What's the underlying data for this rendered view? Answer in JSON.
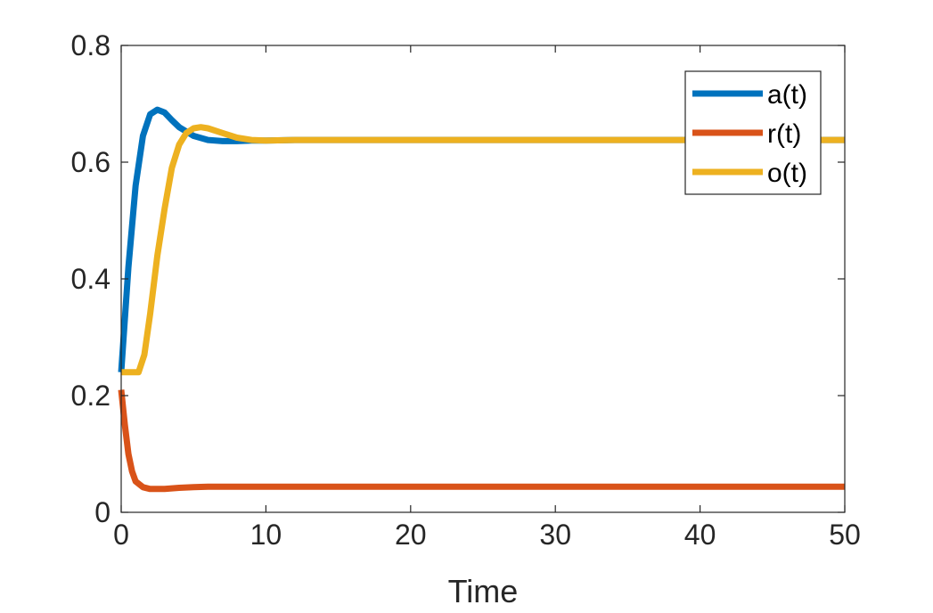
{
  "chart_data": {
    "type": "line",
    "title": "",
    "xlabel": "Time",
    "ylabel": "",
    "xlim": [
      0,
      50
    ],
    "ylim": [
      0,
      0.8
    ],
    "xticks": [
      0,
      10,
      20,
      30,
      40,
      50
    ],
    "yticks": [
      0,
      0.2,
      0.4,
      0.6,
      0.8
    ],
    "xtick_labels": [
      "0",
      "10",
      "20",
      "30",
      "40",
      "50"
    ],
    "ytick_labels": [
      "0",
      "0.2",
      "0.4",
      "0.6",
      "0.8"
    ],
    "grid": false,
    "legend_position": "top-right",
    "series": [
      {
        "name": "a(t)",
        "color": "#0072BD",
        "x": [
          0,
          0.5,
          1,
          1.5,
          2,
          2.5,
          3,
          3.5,
          4,
          5,
          6,
          7,
          8,
          9,
          10,
          12,
          15,
          20,
          30,
          40,
          50
        ],
        "y": [
          0.24,
          0.42,
          0.56,
          0.645,
          0.682,
          0.69,
          0.685,
          0.672,
          0.66,
          0.645,
          0.638,
          0.636,
          0.636,
          0.637,
          0.637,
          0.638,
          0.638,
          0.638,
          0.638,
          0.638,
          0.638
        ]
      },
      {
        "name": "r(t)",
        "color": "#D95319",
        "x": [
          0,
          0.25,
          0.5,
          0.75,
          1,
          1.5,
          2,
          3,
          4,
          5,
          6,
          8,
          10,
          15,
          20,
          30,
          40,
          50
        ],
        "y": [
          0.21,
          0.15,
          0.1,
          0.07,
          0.053,
          0.043,
          0.04,
          0.04,
          0.042,
          0.043,
          0.044,
          0.044,
          0.044,
          0.044,
          0.044,
          0.044,
          0.044,
          0.044
        ]
      },
      {
        "name": "o(t)",
        "color": "#EDB120",
        "x": [
          0,
          0.6,
          1.2,
          1.6,
          2,
          2.5,
          3,
          3.5,
          4,
          4.5,
          5,
          5.5,
          6,
          7,
          8,
          9,
          10,
          12,
          15,
          20,
          30,
          40,
          50
        ],
        "y": [
          0.24,
          0.24,
          0.24,
          0.27,
          0.34,
          0.44,
          0.52,
          0.59,
          0.63,
          0.65,
          0.658,
          0.66,
          0.658,
          0.65,
          0.642,
          0.638,
          0.637,
          0.638,
          0.638,
          0.638,
          0.638,
          0.638,
          0.638
        ]
      }
    ]
  }
}
